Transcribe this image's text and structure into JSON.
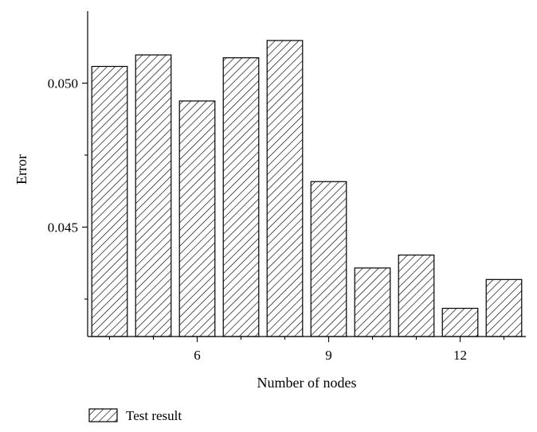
{
  "chart_data": {
    "type": "bar",
    "title": "",
    "xlabel": "Number of nodes",
    "ylabel": "Error",
    "categories": [
      4,
      5,
      6,
      7,
      8,
      9,
      10,
      11,
      12,
      13
    ],
    "series": [
      {
        "name": "Test result",
        "values": [
          0.05058,
          0.05098,
          0.04938,
          0.05088,
          0.05148,
          0.04658,
          0.04358,
          0.04403,
          0.04218,
          0.04318
        ]
      }
    ],
    "ylim": [
      0.0412,
      0.0525
    ],
    "xlim": [
      3.5,
      13.5
    ],
    "x_ticks": [
      6,
      9,
      12
    ],
    "x_tick_labels": [
      "6",
      "9",
      "12"
    ],
    "y_ticks": [
      0.045,
      0.05
    ],
    "y_tick_labels": [
      "0.045",
      "0.050"
    ],
    "grid": false,
    "legend_position": "bottom-left",
    "bar_fill": "diagonal-hatch",
    "colors": {
      "bar_stroke": "#000000",
      "hatch": "#000000",
      "background": "#ffffff"
    }
  }
}
